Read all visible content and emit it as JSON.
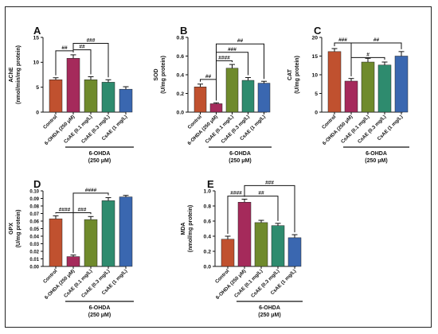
{
  "chart_data": [
    {
      "panel": "A",
      "type": "bar",
      "ylabel_lines": [
        "AChE",
        "(nmol/min/mg protein)"
      ],
      "ylim": [
        0,
        15
      ],
      "yticks": [
        0,
        5,
        10,
        15
      ],
      "categories": [
        "Control",
        "6-OHDA (250 μM)",
        "CsAE (0.1 mg/L)",
        "CsAE (0.3 mg/L)",
        "CsAE (1 mg/L)"
      ],
      "values": [
        6.5,
        10.8,
        6.5,
        6.0,
        4.6
      ],
      "errors": [
        0.4,
        0.7,
        0.6,
        0.5,
        0.5
      ],
      "colors": [
        "#c0512f",
        "#a52a5b",
        "#6f8a2c",
        "#2e8b6e",
        "#3a67b0"
      ],
      "group_label_lines": [
        "6-OHDA",
        "(250 μM)"
      ],
      "brackets": [
        {
          "from": 0,
          "to": 1,
          "y": 12.3,
          "label": "##"
        },
        {
          "from": 1,
          "to": 2,
          "y": 12.5,
          "label": "##"
        },
        {
          "from": 1,
          "to": 3,
          "y": 13.8,
          "label": "###"
        }
      ]
    },
    {
      "panel": "B",
      "type": "bar",
      "ylabel_lines": [
        "SOD",
        "(U/mg protein)"
      ],
      "ylim": [
        0,
        0.8
      ],
      "yticks": [
        0.0,
        0.2,
        0.4,
        0.6,
        0.8
      ],
      "categories": [
        "Control",
        "6-OHDA (250 μM)",
        "CsAE (0.1 mg/L)",
        "CsAE (0.3 mg/L)",
        "CsAE (1 mg/L)"
      ],
      "values": [
        0.27,
        0.09,
        0.47,
        0.34,
        0.31
      ],
      "errors": [
        0.03,
        0.01,
        0.04,
        0.03,
        0.02
      ],
      "colors": [
        "#c0512f",
        "#a52a5b",
        "#6f8a2c",
        "#2e8b6e",
        "#3a67b0"
      ],
      "group_label_lines": [
        "6-OHDA",
        "(250 μM)"
      ],
      "brackets": [
        {
          "from": 0,
          "to": 1,
          "y": 0.35,
          "label": "##"
        },
        {
          "from": 1,
          "to": 2,
          "y": 0.55,
          "label": "####"
        },
        {
          "from": 1,
          "to": 3,
          "y": 0.64,
          "label": "###"
        },
        {
          "from": 1,
          "to": 4,
          "y": 0.73,
          "label": "##"
        }
      ]
    },
    {
      "panel": "C",
      "type": "bar",
      "ylabel_lines": [
        "CAT",
        "(U/mg protein)"
      ],
      "ylim": [
        0,
        20
      ],
      "yticks": [
        0,
        5,
        10,
        15,
        20
      ],
      "categories": [
        "Control",
        "6-OHDA (250 μM)",
        "CsAE (0.1 mg/L)",
        "CsAE (0.3 mg/L)",
        "CsAE (1 mg/L)"
      ],
      "values": [
        16.2,
        8.3,
        13.4,
        12.6,
        15.0
      ],
      "errors": [
        0.8,
        0.7,
        1.0,
        0.8,
        1.2
      ],
      "colors": [
        "#c0512f",
        "#a52a5b",
        "#6f8a2c",
        "#2e8b6e",
        "#3a67b0"
      ],
      "group_label_lines": [
        "6-OHDA",
        "(250 μM)"
      ],
      "brackets": [
        {
          "from": 0,
          "to": 1,
          "y": 18.5,
          "label": "###"
        },
        {
          "from": 1,
          "to": 3,
          "y": 14.6,
          "label": "#"
        },
        {
          "from": 1,
          "to": 4,
          "y": 18.5,
          "label": "##"
        }
      ]
    },
    {
      "panel": "D",
      "type": "bar",
      "ylabel_lines": [
        "GPX",
        "(U/mg protein)"
      ],
      "ylim": [
        0,
        0.1
      ],
      "yticks": [
        0.0,
        0.01,
        0.02,
        0.03,
        0.04,
        0.05,
        0.06,
        0.07,
        0.08,
        0.09,
        0.1
      ],
      "categories": [
        "Control",
        "6-OHDA (250 μM)",
        "CsAE (0.1 mg/L)",
        "CsAE (0.3 mg/L)",
        "CsAE (1 mg/L)"
      ],
      "values": [
        0.063,
        0.013,
        0.062,
        0.087,
        0.092
      ],
      "errors": [
        0.004,
        0.002,
        0.004,
        0.004,
        0.002
      ],
      "colors": [
        "#c0512f",
        "#a52a5b",
        "#6f8a2c",
        "#2e8b6e",
        "#3a67b0"
      ],
      "group_label_lines": [
        "6-OHDA",
        "(250 μM)"
      ],
      "brackets": [
        {
          "from": 0,
          "to": 1,
          "y": 0.071,
          "label": "####"
        },
        {
          "from": 1,
          "to": 2,
          "y": 0.071,
          "label": "###"
        },
        {
          "from": 1,
          "to": 3,
          "y": 0.097,
          "label": "####"
        }
      ]
    },
    {
      "panel": "E",
      "type": "bar",
      "ylabel_lines": [
        "MDA",
        "(nmol/mg protein)"
      ],
      "ylim": [
        0,
        1.0
      ],
      "yticks": [
        0.0,
        0.2,
        0.4,
        0.6,
        0.8,
        1.0
      ],
      "categories": [
        "Control",
        "6-OHDA (250 μM)",
        "CsAE (0.1 mg/L)",
        "CsAE (0.3 mg/L)",
        "CsAE (1 mg/L)"
      ],
      "values": [
        0.36,
        0.85,
        0.58,
        0.54,
        0.38
      ],
      "errors": [
        0.04,
        0.04,
        0.03,
        0.03,
        0.04
      ],
      "colors": [
        "#c0512f",
        "#a52a5b",
        "#6f8a2c",
        "#2e8b6e",
        "#3a67b0"
      ],
      "group_label_lines": [
        "6-OHDA",
        "(250 μM)"
      ],
      "brackets": [
        {
          "from": 0,
          "to": 1,
          "y": 0.93,
          "label": "####"
        },
        {
          "from": 1,
          "to": 3,
          "y": 0.93,
          "label": "##"
        },
        {
          "from": 1,
          "to": 4,
          "y": 1.07,
          "label": "###"
        }
      ]
    }
  ]
}
